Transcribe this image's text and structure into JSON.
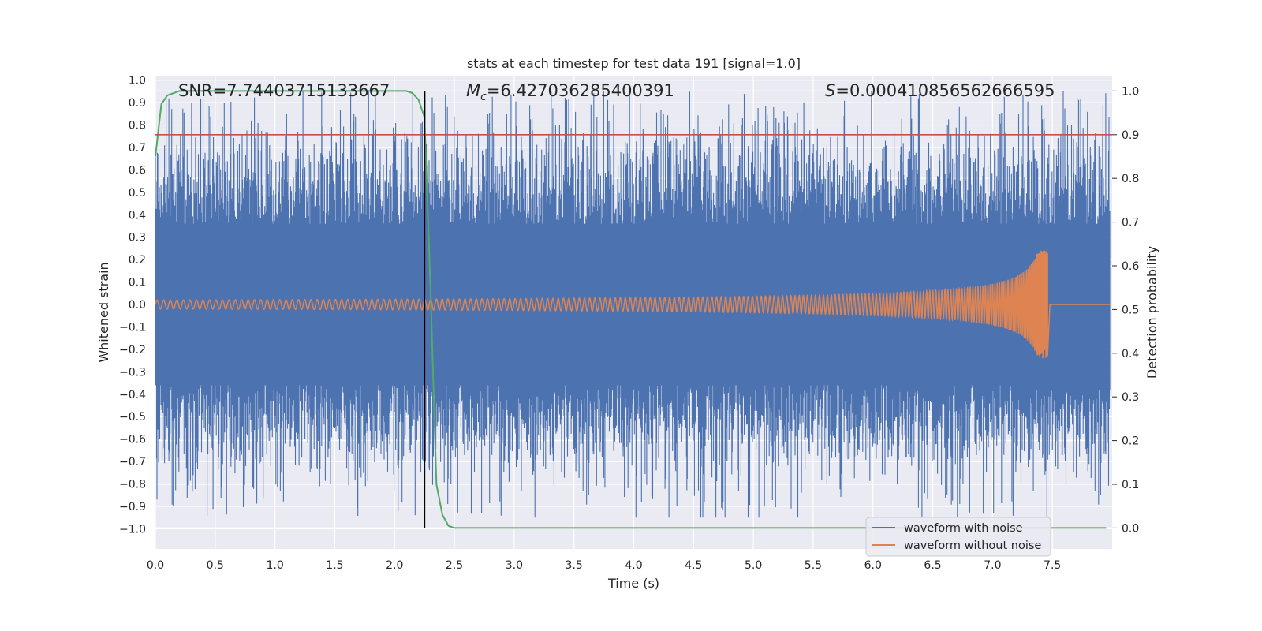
{
  "chart_data": {
    "type": "line",
    "title": "stats at each timestep for test data 191 [signal=1.0]",
    "xlabel": "Time (s)",
    "ylabel": "Whitened strain",
    "ylabel_right": "Detection probability",
    "xlim": [
      0.0,
      8.0
    ],
    "ylim": [
      -1.09,
      1.02
    ],
    "ylim_right": [
      -0.048,
      1.035
    ],
    "x_ticks": [
      "0.0",
      "0.5",
      "1.0",
      "1.5",
      "2.0",
      "2.5",
      "3.0",
      "3.5",
      "4.0",
      "4.5",
      "5.0",
      "5.5",
      "6.0",
      "6.5",
      "7.0",
      "7.5"
    ],
    "y_ticks": [
      "1.0",
      "0.9",
      "0.8",
      "0.7",
      "0.6",
      "0.5",
      "0.4",
      "0.3",
      "0.2",
      "0.1",
      "0.0",
      "−0.1",
      "−0.2",
      "−0.3",
      "−0.4",
      "−0.5",
      "−0.6",
      "−0.7",
      "−0.8",
      "−0.9",
      "−1.0"
    ],
    "y_ticks_right": [
      "1.0",
      "0.9",
      "0.8",
      "0.7",
      "0.6",
      "0.5",
      "0.4",
      "0.3",
      "0.2",
      "0.1",
      "0.0"
    ],
    "grid": true,
    "annotations": {
      "snr": "SNR=7.74403715133667",
      "mc_symbol": "M",
      "mc_sub": "c",
      "mc_value": "=6.427036285400391",
      "s_symbol": "S",
      "s_value": "=0.00041085656266659 5"
    },
    "threshold_right": 0.9,
    "detection_time": 2.25,
    "series": [
      {
        "name": "waveform with noise",
        "color": "#4c72b0",
        "description_values": "noise envelope approx ±0.35 typical, peaks to about ±0.95",
        "envelope": {
          "typical_amplitude": 0.36,
          "max_peak": 0.95
        }
      },
      {
        "name": "waveform without noise",
        "color": "#dd8452",
        "chirp": {
          "start_amplitude": 0.02,
          "peak_amplitude": 0.24,
          "peak_time": 7.46,
          "end_time": 7.46
        }
      },
      {
        "name": "detection probability",
        "axis": "right",
        "color": "#55a868",
        "x": [
          0.0,
          0.05,
          0.1,
          0.2,
          0.5,
          1.0,
          1.5,
          2.0,
          2.1,
          2.15,
          2.2,
          2.25,
          2.3,
          2.35,
          2.4,
          2.45,
          2.5,
          3.0,
          4.0,
          5.0,
          6.0,
          7.0,
          7.95
        ],
        "y": [
          0.85,
          0.97,
          0.99,
          1.0,
          1.0,
          1.0,
          1.0,
          1.0,
          1.0,
          0.995,
          0.98,
          0.94,
          0.55,
          0.1,
          0.03,
          0.005,
          0.0,
          0.0,
          0.0,
          0.0,
          0.0,
          0.0,
          0.0
        ]
      }
    ],
    "legend": {
      "placement": "lower-right",
      "entries": [
        {
          "label": "waveform with noise",
          "color": "#4c72b0"
        },
        {
          "label": "waveform without noise",
          "color": "#dd8452"
        }
      ]
    },
    "colors": {
      "background": "#eaeaf2",
      "grid": "#ffffff",
      "threshold": "#c44e52",
      "detection_line": "#000000"
    }
  }
}
